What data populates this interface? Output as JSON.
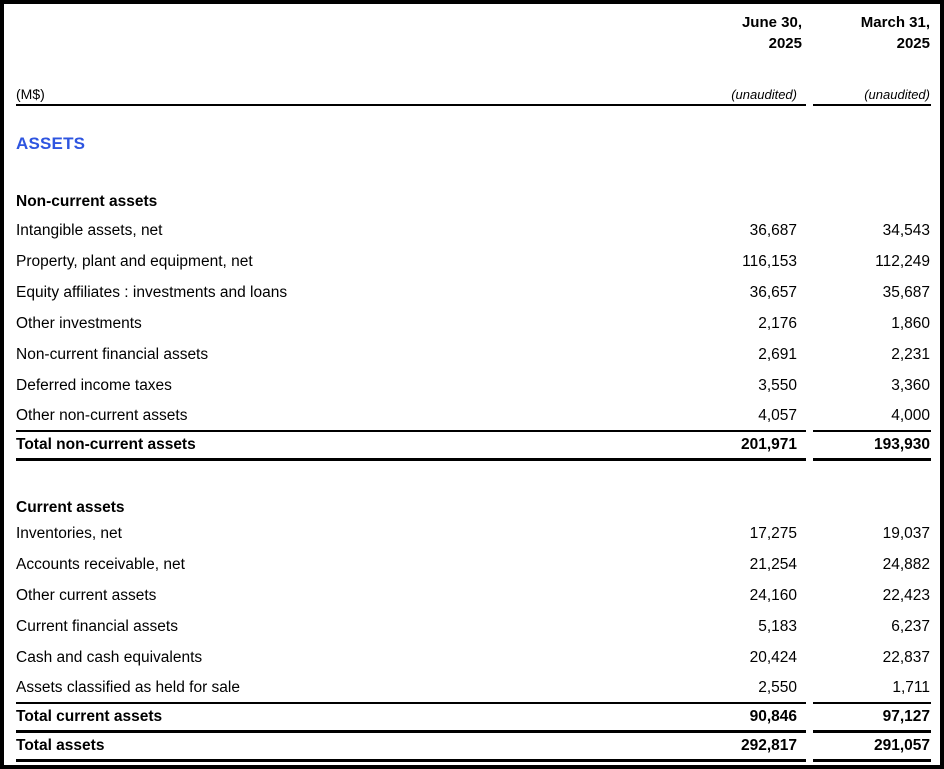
{
  "colors": {
    "assets_heading": "#2e55e0"
  },
  "header": {
    "unit": "(M$)",
    "col1": {
      "line1": "June 30,",
      "line2": "2025",
      "unaudited": "(unaudited)"
    },
    "col2": {
      "line1": "March 31,",
      "line2": "2025",
      "unaudited": "(unaudited)"
    }
  },
  "assets_title": "ASSETS",
  "sections": [
    {
      "header": "Non-current assets",
      "rows": [
        {
          "label": "Intangible assets, net",
          "v1": "36,687",
          "v2": "34,543"
        },
        {
          "label": "Property, plant and equipment, net",
          "v1": "116,153",
          "v2": "112,249"
        },
        {
          "label": "Equity affiliates : investments and loans",
          "v1": "36,657",
          "v2": "35,687"
        },
        {
          "label": "Other investments",
          "v1": "2,176",
          "v2": "1,860"
        },
        {
          "label": "Non-current financial assets",
          "v1": "2,691",
          "v2": "2,231"
        },
        {
          "label": "Deferred income taxes",
          "v1": "3,550",
          "v2": "3,360"
        },
        {
          "label": "Other non-current assets",
          "v1": "4,057",
          "v2": "4,000"
        }
      ],
      "total": {
        "label": "Total non-current assets",
        "v1": "201,971",
        "v2": "193,930"
      }
    },
    {
      "header": "Current assets",
      "rows": [
        {
          "label": "Inventories, net",
          "v1": "17,275",
          "v2": "19,037"
        },
        {
          "label": "Accounts receivable, net",
          "v1": "21,254",
          "v2": "24,882"
        },
        {
          "label": "Other current assets",
          "v1": "24,160",
          "v2": "22,423"
        },
        {
          "label": "Current financial assets",
          "v1": "5,183",
          "v2": "6,237"
        },
        {
          "label": "Cash and cash equivalents",
          "v1": "20,424",
          "v2": "22,837"
        },
        {
          "label": "Assets classified as held for sale",
          "v1": "2,550",
          "v2": "1,711"
        }
      ],
      "total": {
        "label": "Total current assets",
        "v1": "90,846",
        "v2": "97,127"
      }
    }
  ],
  "grand_total": {
    "label": "Total assets",
    "v1": "292,817",
    "v2": "291,057"
  }
}
